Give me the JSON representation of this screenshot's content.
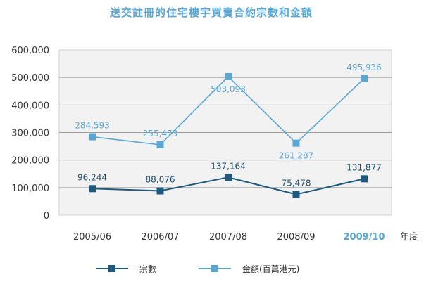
{
  "chart_data": {
    "type": "line",
    "title": "送交註冊的住宅樓宇買賣合約宗數和金額",
    "xlabel": "年度",
    "ylabel": "",
    "categories": [
      "2005/06",
      "2006/07",
      "2007/08",
      "2008/09",
      "2009/10"
    ],
    "highlighted_category": "2009/10",
    "ylim": [
      0,
      600000
    ],
    "yticks": [
      "0",
      "100,000",
      "200,000",
      "300,000",
      "400,000",
      "500,000",
      "600,000"
    ],
    "grid": true,
    "legend_position": "bottom",
    "series": [
      {
        "name": "金額(百萬港元)",
        "color": "#5aa7d3",
        "values": [
          284593,
          255473,
          503093,
          261287,
          495936
        ],
        "labels": [
          "284,593",
          "255,473",
          "503,093",
          "261,287",
          "495,936"
        ]
      },
      {
        "name": "宗數",
        "color": "#1f5a7e",
        "values": [
          96244,
          88076,
          137164,
          75478,
          131877
        ],
        "labels": [
          "96,244",
          "88,076",
          "137,164",
          "75,478",
          "131,877"
        ]
      }
    ]
  }
}
